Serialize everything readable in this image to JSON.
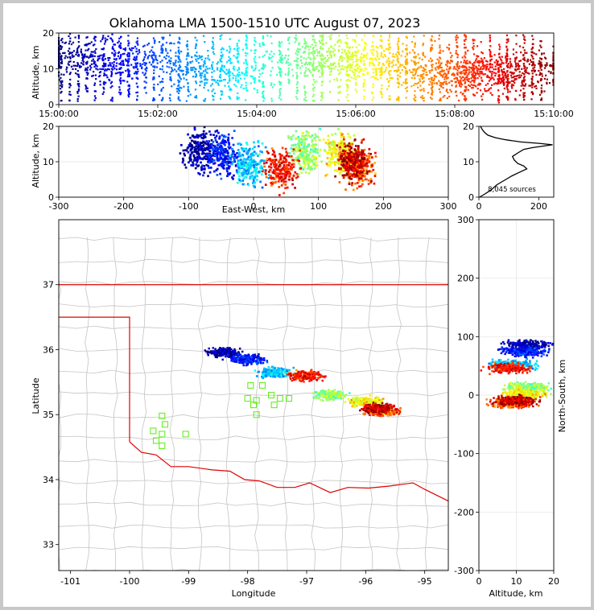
{
  "chart_data": {
    "type": "scatter",
    "title": "Oklahoma LMA 1500-1510 UTC August 07, 2023",
    "panels": {
      "time_altitude": {
        "ylabel": "Altitude, km",
        "x_ticks": [
          "15:00:00",
          "15:02:00",
          "15:04:00",
          "15:06:00",
          "15:08:00",
          "15:10:00"
        ],
        "xlim_minutes": [
          0,
          10
        ],
        "ylim": [
          0,
          20
        ],
        "y_ticks": [
          "0",
          "10",
          "20"
        ]
      },
      "ew_altitude": {
        "xlabel": "East-West, km",
        "ylabel": "Altitude, km",
        "xlim": [
          -300,
          300
        ],
        "x_ticks": [
          "-300",
          "-200",
          "-100",
          "0",
          "100",
          "200",
          "300"
        ],
        "ylim": [
          0,
          20
        ],
        "y_ticks": [
          "0",
          "10",
          "20"
        ]
      },
      "altitude_histogram": {
        "annotation": "8,045 sources",
        "x_ticks": [
          "0",
          "200"
        ],
        "y_ticks": [
          "0",
          "10",
          "20"
        ],
        "xlim": [
          0,
          250
        ],
        "ylim": [
          0,
          20
        ],
        "profile": [
          [
            2,
            0
          ],
          [
            18,
            0.8
          ],
          [
            40,
            2
          ],
          [
            60,
            3.5
          ],
          [
            90,
            5
          ],
          [
            110,
            6
          ],
          [
            135,
            7
          ],
          [
            160,
            8
          ],
          [
            150,
            8.8
          ],
          [
            130,
            9.5
          ],
          [
            118,
            10.5
          ],
          [
            112,
            11.5
          ],
          [
            130,
            12.5
          ],
          [
            150,
            13.5
          ],
          [
            180,
            14
          ],
          [
            246,
            14.8
          ],
          [
            200,
            15.2
          ],
          [
            140,
            15.6
          ],
          [
            90,
            16.2
          ],
          [
            55,
            16.8
          ],
          [
            30,
            17.5
          ],
          [
            20,
            18.2
          ],
          [
            12,
            19
          ],
          [
            5,
            20
          ]
        ]
      },
      "plan_view": {
        "xlabel": "Longitude",
        "ylabel": "Latitude",
        "xlim": [
          -101.2,
          -94.6
        ],
        "ylim": [
          32.6,
          38
        ],
        "x_ticks": [
          "-101",
          "-100",
          "-99",
          "-98",
          "-97",
          "-96",
          "-95"
        ],
        "y_ticks": [
          "33",
          "34",
          "35",
          "36",
          "37"
        ],
        "stations": [
          [
            -97.95,
            35.45
          ],
          [
            -97.75,
            35.45
          ],
          [
            -97.6,
            35.3
          ],
          [
            -97.45,
            35.25
          ],
          [
            -97.3,
            35.25
          ],
          [
            -97.85,
            35.22
          ],
          [
            -98.0,
            35.25
          ],
          [
            -97.9,
            35.15
          ],
          [
            -97.85,
            35.0
          ],
          [
            -97.55,
            35.15
          ],
          [
            -99.4,
            34.85
          ],
          [
            -99.45,
            34.7
          ],
          [
            -99.05,
            34.7
          ],
          [
            -99.6,
            34.75
          ],
          [
            -99.45,
            34.98
          ],
          [
            -99.55,
            34.6
          ],
          [
            -99.45,
            34.52
          ]
        ]
      },
      "altitude_ns": {
        "xlabel": "Altitude, km",
        "ylabel": "North-South, km",
        "xlim": [
          0,
          20
        ],
        "x_ticks": [
          "0",
          "10",
          "20"
        ],
        "ylim": [
          -300,
          300
        ],
        "y_ticks": [
          "-300",
          "-200",
          "-100",
          "0",
          "100",
          "200",
          "300"
        ]
      }
    },
    "series": [
      {
        "cells": [
          {
            "t": 0.3,
            "lon": -98.4,
            "lat": 35.95,
            "alt": 13
          },
          {
            "t": 1.5,
            "lon": -98.0,
            "lat": 35.85,
            "alt": 12
          },
          {
            "t": 3.2,
            "lon": -97.55,
            "lat": 35.65,
            "alt": 9
          },
          {
            "t": 5.2,
            "lon": -96.6,
            "lat": 35.3,
            "alt": 13
          },
          {
            "t": 6.3,
            "lon": -96.0,
            "lat": 35.2,
            "alt": 12
          },
          {
            "t": 7.8,
            "lon": -95.7,
            "lat": 35.05,
            "alt": 9
          },
          {
            "t": 8.5,
            "lon": -97.0,
            "lat": 35.6,
            "alt": 8
          },
          {
            "t": 9.4,
            "lon": -95.8,
            "lat": 35.1,
            "alt": 10
          }
        ]
      }
    ]
  }
}
